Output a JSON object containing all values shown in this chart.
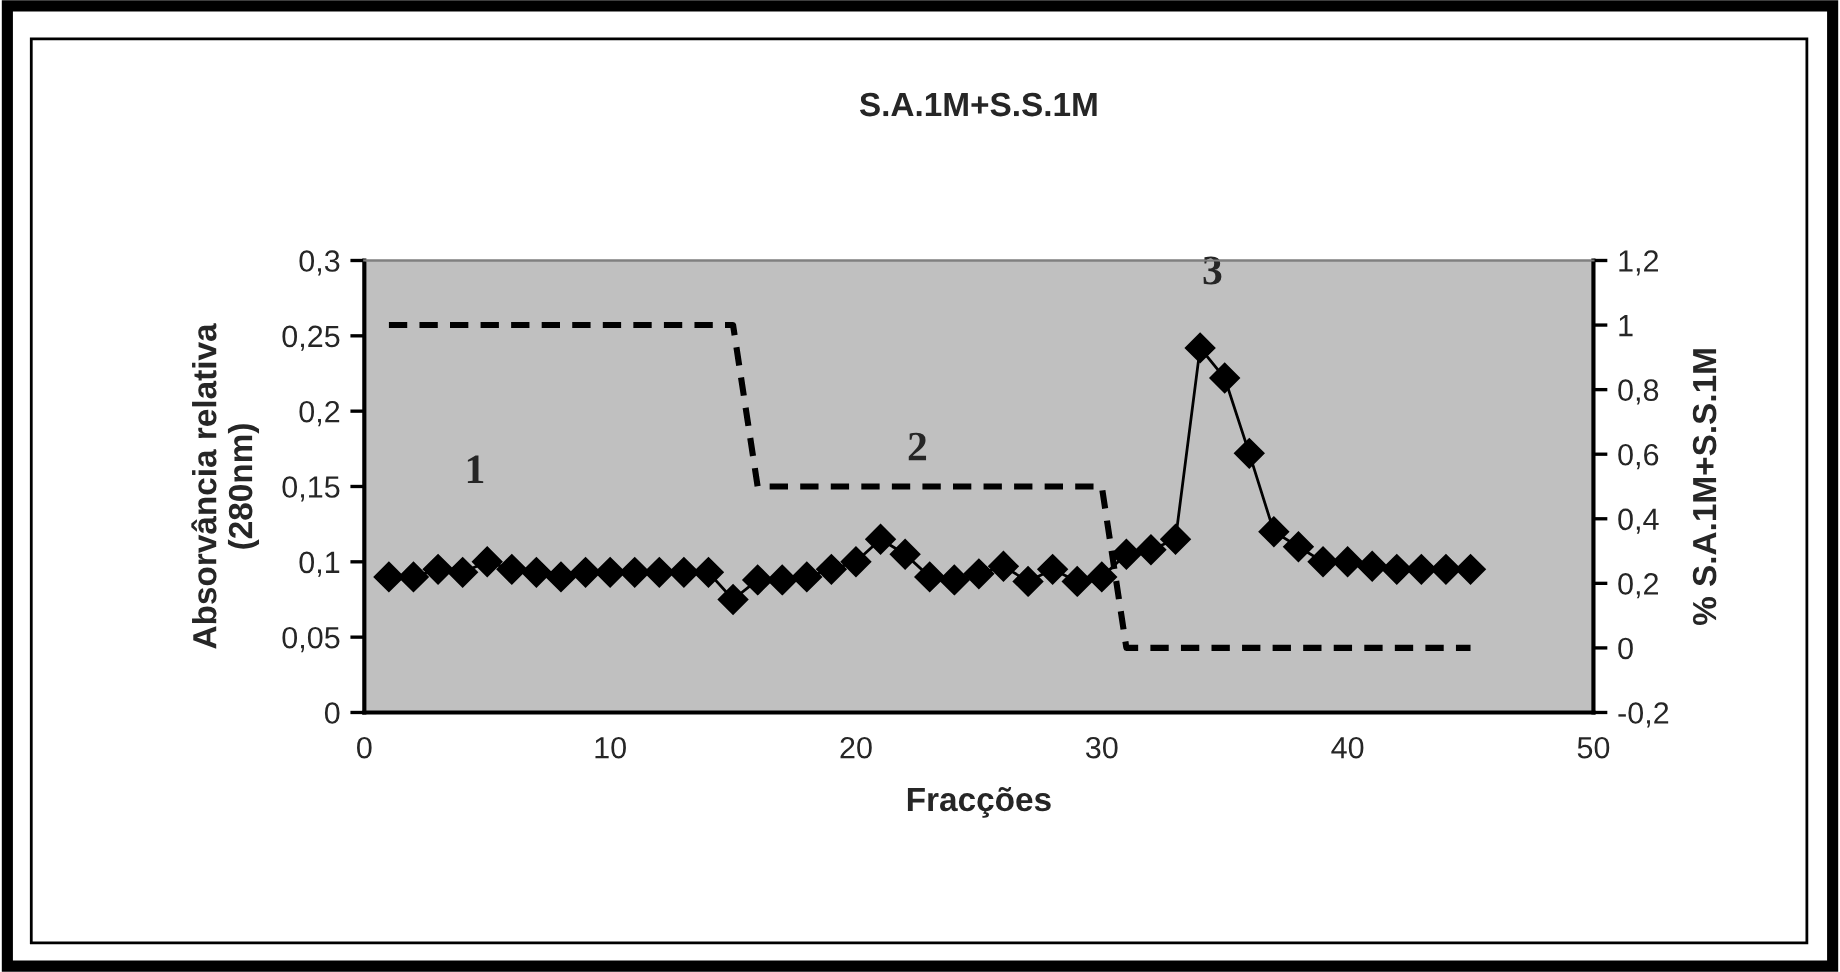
{
  "chart_data": {
    "type": "line",
    "title": "S.A.1M+S.S.1M",
    "xlabel": "Fracções",
    "ylabel": "Absorvância relativa\n(280nm)",
    "y2label": "% S.A.1M+S.S.1M",
    "series": [
      {
        "color": "#000000",
        "marker": "diamond",
        "line_style": "solid",
        "x": [
          1,
          2,
          3,
          4,
          5,
          6,
          7,
          8,
          9,
          10,
          11,
          12,
          13,
          14,
          15,
          16,
          17,
          18,
          19,
          20,
          21,
          22,
          23,
          24,
          25,
          26,
          27,
          28,
          29,
          30,
          31,
          32,
          33,
          34,
          35,
          36,
          37,
          38,
          39,
          40,
          41,
          42,
          43,
          44,
          45
        ],
        "values": [
          0.09,
          0.09,
          0.095,
          0.093,
          0.1,
          0.095,
          0.093,
          0.09,
          0.093,
          0.093,
          0.093,
          0.093,
          0.093,
          0.093,
          0.075,
          0.088,
          0.088,
          0.09,
          0.095,
          0.1,
          0.115,
          0.105,
          0.09,
          0.088,
          0.092,
          0.097,
          0.087,
          0.095,
          0.087,
          0.09,
          0.105,
          0.108,
          0.115,
          0.242,
          0.222,
          0.172,
          0.12,
          0.11,
          0.1,
          0.1,
          0.097,
          0.095,
          0.095,
          0.095,
          0.095
        ]
      },
      {
        "axis": "y2",
        "color": "#000000",
        "marker": "none",
        "line_style": "dashed",
        "x": [
          1,
          15,
          16,
          30,
          31,
          45
        ],
        "values": [
          1,
          1,
          0.5,
          0.5,
          0,
          0
        ]
      }
    ],
    "xlim": [
      0,
      50
    ],
    "xticks": [
      0,
      10,
      20,
      30,
      40,
      50
    ],
    "ylim": [
      0,
      0.3
    ],
    "yticks": [
      0,
      {
        "value": 0.05,
        "label": "0,05"
      },
      {
        "value": 0.1,
        "label": "0,1"
      },
      {
        "value": 0.15,
        "label": "0,15"
      },
      {
        "value": 0.2,
        "label": "0,2"
      },
      {
        "value": 0.25,
        "label": "0,25"
      },
      {
        "value": 0.3,
        "label": "0,3"
      }
    ],
    "y2lim": [
      -0.2,
      1.2
    ],
    "y2ticks": [
      {
        "value": -0.2,
        "label": "-0,2"
      },
      0,
      {
        "value": 0.2,
        "label": "0,2"
      },
      {
        "value": 0.4,
        "label": "0,4"
      },
      {
        "value": 0.6,
        "label": "0,6"
      },
      {
        "value": 0.8,
        "label": "0,8"
      },
      1,
      {
        "value": 1.2,
        "label": "1,2"
      }
    ],
    "annotations": [
      "1",
      "2",
      "3"
    ],
    "grid": false,
    "legend": false
  }
}
